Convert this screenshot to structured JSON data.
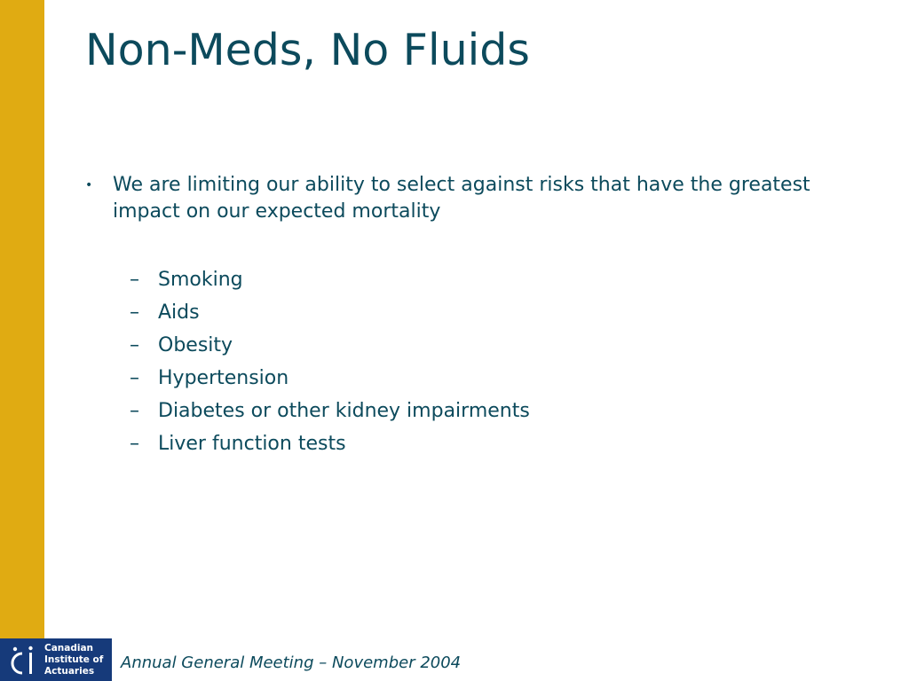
{
  "slide": {
    "title": "Non-Meds, No Fluids",
    "bullet": {
      "marker": "•",
      "text": "We are limiting our ability to select against risks that have the greatest impact on our expected mortality"
    },
    "sub_marker": "–",
    "sub_items": [
      "Smoking",
      "Aids",
      "Obesity",
      "Hypertension",
      "Diabetes or other kidney impairments",
      "Liver function tests"
    ]
  },
  "logo": {
    "line1": "Canadian",
    "line2": "Institute of",
    "line3": "Actuaries"
  },
  "footer": {
    "text": "Annual General Meeting – November 2004"
  },
  "colors": {
    "accent_bar": "#e0ab12",
    "text": "#0c4a5c",
    "logo_bg": "#163a7a"
  }
}
